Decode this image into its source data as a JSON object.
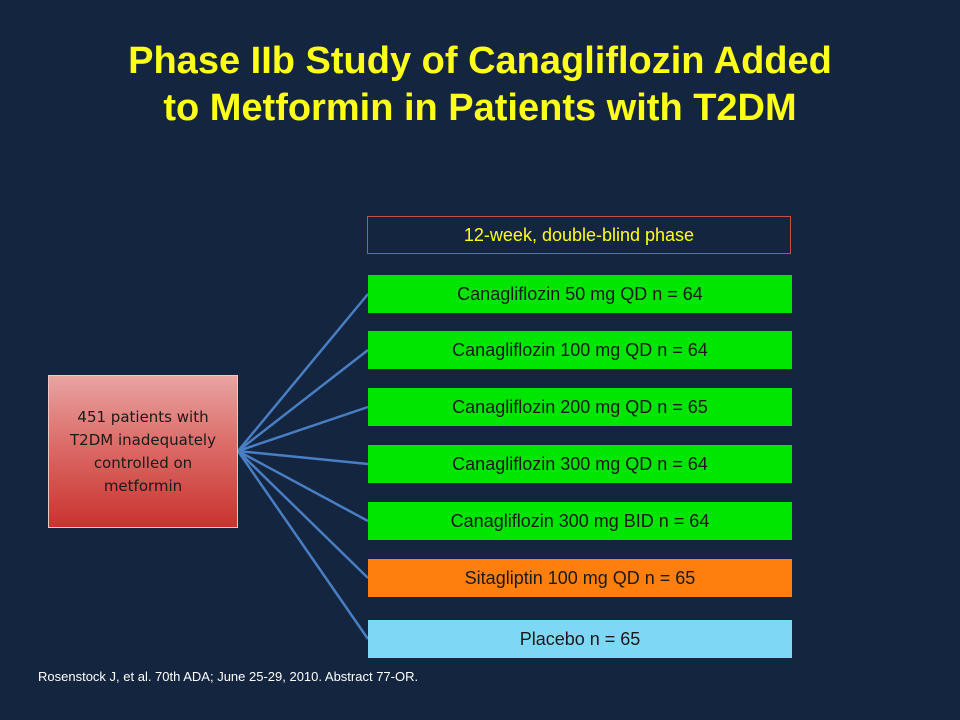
{
  "title_line1": "Phase IIb Study of Canagliflozin Added",
  "title_line2": "to Metformin in Patients with T2DM",
  "phase_label": "12-week, double-blind phase",
  "patients_label": "451 patients with T2DM inadequately controlled on metformin",
  "arms": [
    {
      "label": "Canagliflozin 50 mg QD  n = 64",
      "color": "#00e600"
    },
    {
      "label": "Canagliflozin 100 mg QD  n = 64",
      "color": "#00e600"
    },
    {
      "label": "Canagliflozin 200 mg QD  n = 65",
      "color": "#00e600"
    },
    {
      "label": "Canagliflozin 300 mg QD  n = 64",
      "color": "#00e600"
    },
    {
      "label": "Canagliflozin 300 mg BID  n = 64",
      "color": "#00e600"
    },
    {
      "label": "Sitagliptin 100 mg QD  n = 65",
      "color": "#ff7f0e"
    },
    {
      "label": "Placebo n = 65",
      "color": "#7ed8f5"
    }
  ],
  "citation": "Rosenstock J, et al. 70th ADA; June 25-29, 2010. Abstract 77-OR."
}
